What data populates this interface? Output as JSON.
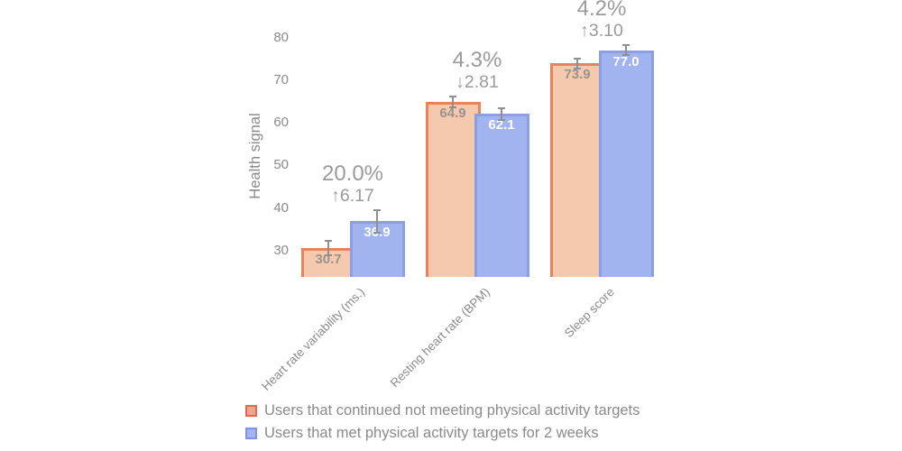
{
  "chart_data": {
    "type": "bar",
    "title": "",
    "ylabel": "Health signal",
    "xlabel": "",
    "categories": [
      "Heart rate variability (ms.)",
      "Resting heart rate (BPM)",
      "Sleep score"
    ],
    "series": [
      {
        "name": "Users that continued not meeting physical activity targets",
        "values": [
          30.7,
          64.9,
          73.9
        ],
        "value_labels": [
          "30.7",
          "64.9",
          "73.9"
        ],
        "errors": [
          1.7,
          1.3,
          1.1
        ],
        "fill": "#f5c9ad",
        "border": "#e9835b",
        "legend_fill": "#f0a68e",
        "legend_border": "#e06a50",
        "value_label_color": "#9a938c"
      },
      {
        "name": "Users that met physical activity targets for 2 weeks",
        "values": [
          36.9,
          62.1,
          77.0
        ],
        "value_labels": [
          "36.9",
          "62.1",
          "77.0"
        ],
        "errors": [
          2.6,
          1.4,
          1.2
        ],
        "fill": "#a1b4f0",
        "border": "#8e9ee2",
        "legend_fill": "#a4b4ee",
        "legend_border": "#8193de",
        "value_label_color": "#ffffff"
      }
    ],
    "annotations": [
      {
        "percent": "20.0%",
        "delta": "↑6.17"
      },
      {
        "percent": "4.3%",
        "delta": "↓2.81"
      },
      {
        "percent": "4.2%",
        "delta": "↑3.10"
      }
    ],
    "yticks": [
      30,
      40,
      50,
      60,
      70,
      80
    ],
    "ylim": [
      24,
      86
    ],
    "grid": false,
    "legend_position": "bottom-left",
    "colors": {
      "axis_text": "#8a8a8a",
      "annotation_text": "#9b9b9b",
      "error_bar": "#8f8f8f",
      "background": "#ffffff"
    }
  }
}
